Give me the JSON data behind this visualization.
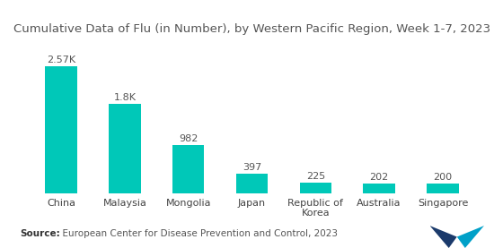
{
  "title": "Cumulative Data of Flu (in Number), by Western Pacific Region, Week 1-7, 2023",
  "categories": [
    "China",
    "Malaysia",
    "Mongolia",
    "Japan",
    "Republic of\nKorea",
    "Australia",
    "Singapore"
  ],
  "values": [
    2570,
    1800,
    982,
    397,
    225,
    202,
    200
  ],
  "value_labels": [
    "2.57K",
    "1.8K",
    "982",
    "397",
    "225",
    "202",
    "200"
  ],
  "bar_color": "#00C8B8",
  "background_color": "#ffffff",
  "source_bold": "Source:",
  "source_text": "  European Center for Disease Prevention and Control, 2023",
  "title_fontsize": 9.5,
  "label_fontsize": 8,
  "value_fontsize": 8,
  "source_fontsize": 7.5,
  "bar_width": 0.5,
  "ylim": [
    0,
    3000
  ],
  "bar_edge_color": "#00C8B8"
}
